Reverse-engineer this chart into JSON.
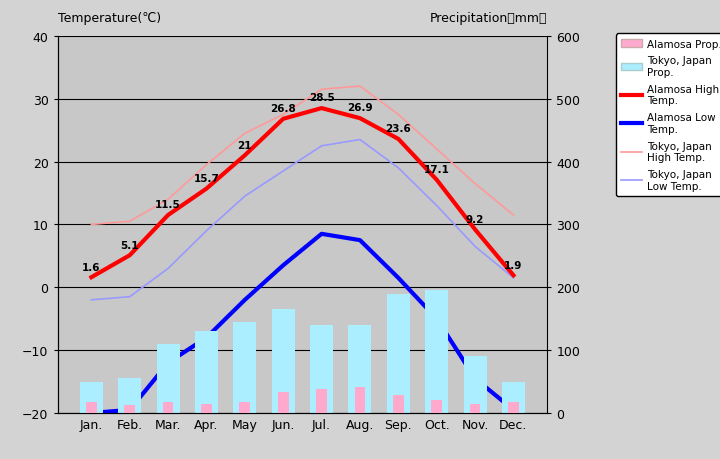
{
  "months": [
    "Jan.",
    "Feb.",
    "Mar.",
    "Apr.",
    "May",
    "Jun.",
    "Jul.",
    "Aug.",
    "Sep.",
    "Oct.",
    "Nov.",
    "Dec."
  ],
  "alamosa_high": [
    1.6,
    5.1,
    11.5,
    15.7,
    21.0,
    26.8,
    28.5,
    26.9,
    23.6,
    17.1,
    9.2,
    1.9
  ],
  "alamosa_low": [
    -20.0,
    -19.5,
    -12.0,
    -8.0,
    -2.0,
    3.5,
    8.5,
    7.5,
    1.5,
    -5.0,
    -14.5,
    -19.5
  ],
  "tokyo_high": [
    10.0,
    10.5,
    14.0,
    19.5,
    24.5,
    27.5,
    31.5,
    32.0,
    27.5,
    22.0,
    16.5,
    11.5
  ],
  "tokyo_low": [
    -2.0,
    -1.5,
    3.0,
    9.0,
    14.5,
    18.5,
    22.5,
    23.5,
    19.0,
    13.0,
    6.5,
    1.5
  ],
  "alamosa_precip_mm": [
    18,
    12,
    18,
    15,
    18,
    33,
    38,
    42,
    28,
    20,
    15,
    18
  ],
  "tokyo_precip_mm": [
    50,
    55,
    110,
    130,
    145,
    165,
    140,
    140,
    190,
    195,
    90,
    50
  ],
  "temp_ylim": [
    -20,
    40
  ],
  "precip_ylim": [
    0,
    600
  ],
  "temp_yticks": [
    -20,
    -10,
    0,
    10,
    20,
    30,
    40
  ],
  "precip_yticks": [
    0,
    100,
    200,
    300,
    400,
    500,
    600
  ],
  "alamosa_high_color": "#ff0000",
  "alamosa_low_color": "#0000ff",
  "tokyo_high_color": "#ff9999",
  "tokyo_low_color": "#9999ff",
  "alamosa_precip_color": "#ffaacc",
  "tokyo_precip_color": "#aaeeff",
  "background_color": "#c8c8c8",
  "fig_bg_color": "#d3d3d3",
  "grid_color": "#000000",
  "title_left": "Temperature(℃)",
  "title_right": "Precipitation（mm）",
  "high_labels": [
    "1.6",
    "5.1",
    "11.5",
    "15.7",
    "21",
    "26.8",
    "28.5",
    "26.9",
    "23.6",
    "17.1",
    "9.2",
    "1.9"
  ],
  "legend_labels": [
    "Alamosa Prop.",
    "Tokyo, Japan\nProp.",
    "Alamosa High\nTemp.",
    "Alamosa Low\nTemp.",
    "Tokyo, Japan\nHigh Temp.",
    "Tokyo, Japan\nLow Temp."
  ]
}
